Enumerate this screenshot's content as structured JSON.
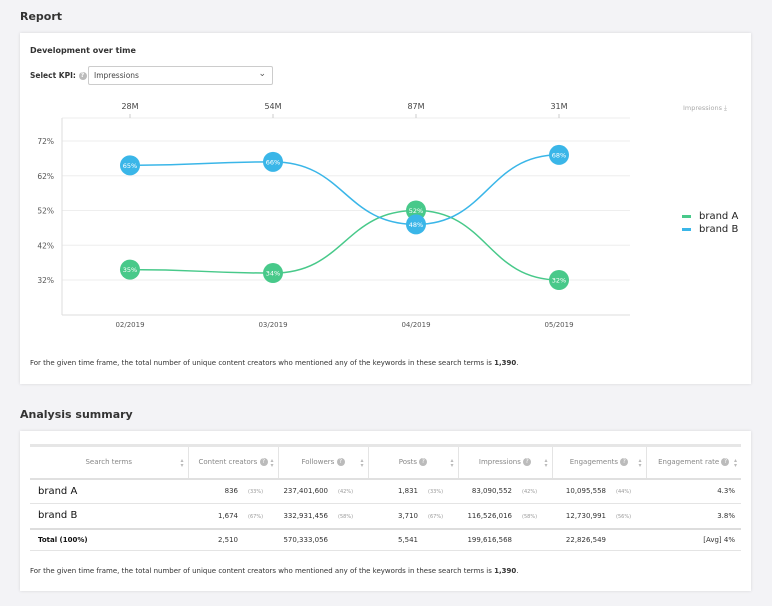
{
  "report_title": "Report",
  "development": {
    "title": "Development over time",
    "kpi_label": "Select KPI:",
    "kpi_value": "Impressions",
    "export_label": "Impressions",
    "note_prefix": "For the given time frame, the total number of unique content creators who mentioned any of the keywords in these search terms is ",
    "note_value": "1,390",
    "note_suffix": "."
  },
  "chart_data": {
    "type": "line",
    "categories": [
      "02/2019",
      "03/2019",
      "04/2019",
      "05/2019"
    ],
    "top_labels": [
      "28M",
      "54M",
      "87M",
      "31M"
    ],
    "yticks": [
      "72%",
      "62%",
      "52%",
      "42%",
      "32%"
    ],
    "ylim": [
      25,
      80
    ],
    "grid": true,
    "legend": "right",
    "series": [
      {
        "name": "brand A",
        "color": "#48c98a",
        "values": [
          35,
          34,
          52,
          32
        ]
      },
      {
        "name": "brand B",
        "color": "#3ab6e8",
        "values": [
          65,
          66,
          48,
          68
        ]
      }
    ]
  },
  "summary": {
    "title": "Analysis summary",
    "headers": [
      "Search terms",
      "Content creators",
      "Followers",
      "Posts",
      "Impressions",
      "Engagements",
      "Engagement rate"
    ],
    "rows": [
      {
        "name": "brand A",
        "cells": [
          [
            "836",
            "(33%)"
          ],
          [
            "237,401,600",
            "(42%)"
          ],
          [
            "1,831",
            "(33%)"
          ],
          [
            "83,090,552",
            "(42%)"
          ],
          [
            "10,095,558",
            "(44%)"
          ],
          [
            "4.3%",
            ""
          ]
        ]
      },
      {
        "name": "brand B",
        "cells": [
          [
            "1,674",
            "(67%)"
          ],
          [
            "332,931,456",
            "(58%)"
          ],
          [
            "3,710",
            "(67%)"
          ],
          [
            "116,526,016",
            "(58%)"
          ],
          [
            "12,730,991",
            "(56%)"
          ],
          [
            "3.8%",
            ""
          ]
        ]
      }
    ],
    "total": {
      "name": "Total (100%)",
      "cells": [
        "2,510",
        "570,333,056",
        "5,541",
        "199,616,568",
        "22,826,549",
        "[Avg] 4%"
      ]
    },
    "note_prefix": "For the given time frame, the total number of unique content creators who mentioned any of the keywords in these search terms is ",
    "note_value": "1,390",
    "note_suffix": "."
  }
}
